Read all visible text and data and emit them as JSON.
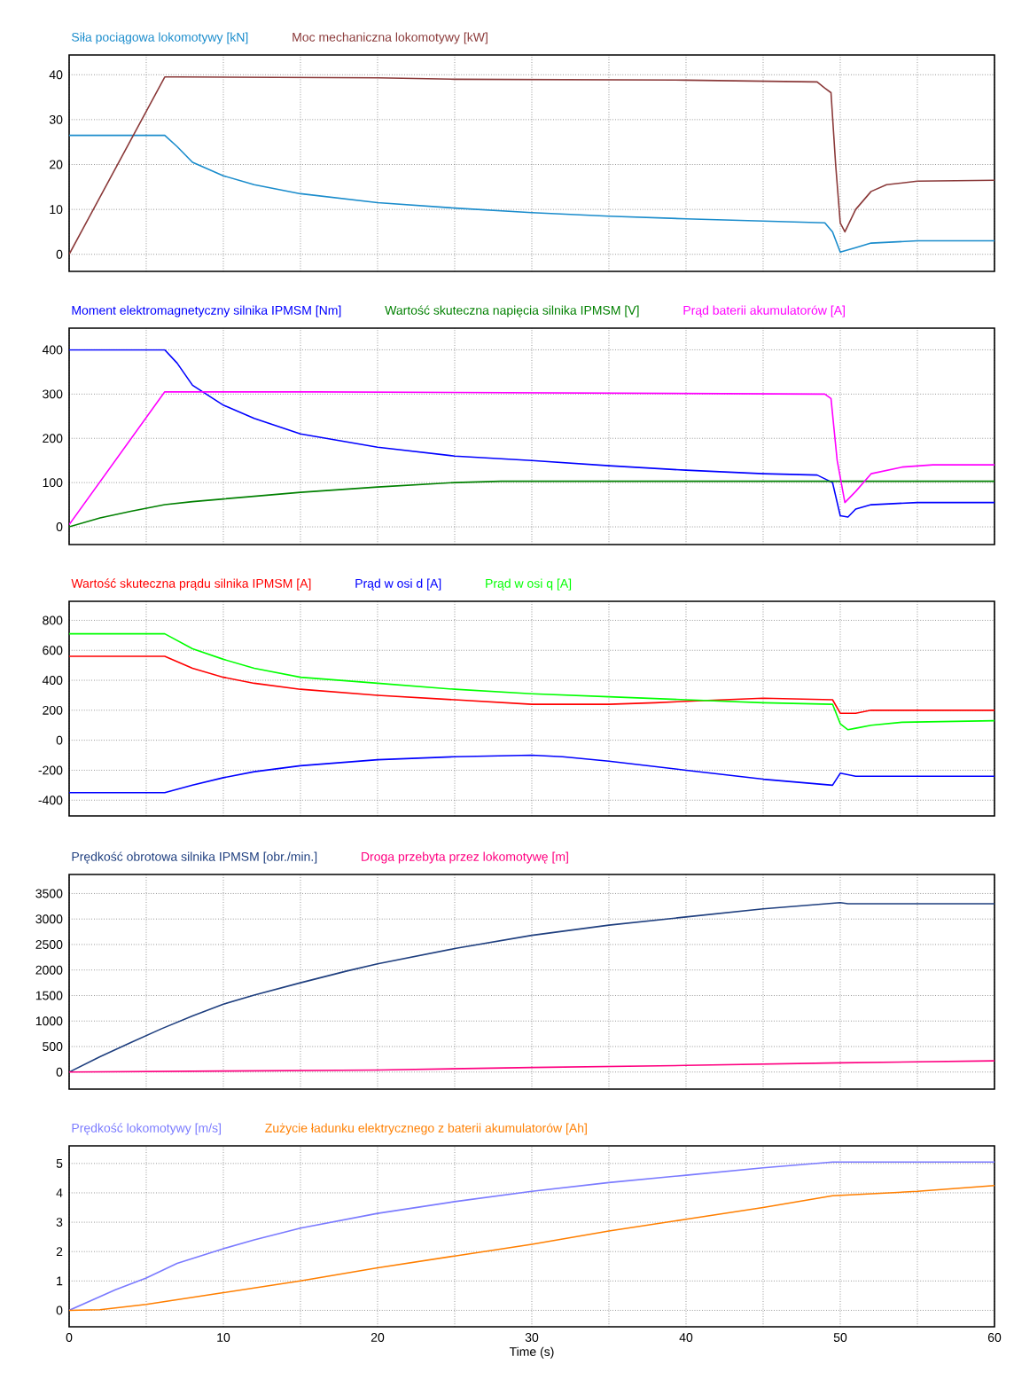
{
  "chart_data": [
    {
      "type": "line",
      "xlim": [
        0,
        60
      ],
      "xticks": [
        0,
        {
          "value": 5,
          "label": null
        },
        10,
        {
          "value": 15,
          "label": null
        },
        20,
        {
          "value": 25,
          "label": null
        },
        30,
        {
          "value": 35,
          "label": null
        },
        40,
        {
          "value": 45,
          "label": null
        },
        50,
        {
          "value": 55,
          "label": null
        },
        60
      ],
      "ylim": [
        -3.8,
        44.4
      ],
      "yticks": [
        0,
        10,
        20,
        30,
        40
      ],
      "tick_labels": "y",
      "grid": true,
      "legend": "top",
      "series": [
        {
          "name": "Siła pociągowa lokomotywy [kN]",
          "color": "#1a8ccc",
          "x": [
            0,
            6.2,
            7,
            8,
            10,
            12,
            15,
            20,
            25,
            30,
            35,
            40,
            45,
            49,
            49.5,
            50,
            51,
            52,
            55,
            60
          ],
          "values": [
            26.5,
            26.5,
            24,
            20.5,
            17.5,
            15.5,
            13.5,
            11.5,
            10.3,
            9.3,
            8.5,
            7.9,
            7.4,
            7,
            5,
            0.5,
            1.5,
            2.5,
            3,
            3
          ]
        },
        {
          "name": "Moc mechaniczna lokomotywy [kW]",
          "color": "#8b3a3a",
          "x": [
            0,
            6.2,
            7,
            20,
            25,
            40,
            48.5,
            49,
            49.4,
            49.7,
            50,
            50.3,
            51,
            52,
            53,
            55,
            60
          ],
          "values": [
            0,
            39.5,
            39.5,
            39.3,
            39,
            38.8,
            38.4,
            37,
            36,
            20,
            7,
            5,
            10,
            14,
            15.5,
            16.3,
            16.5
          ]
        }
      ]
    },
    {
      "type": "line",
      "xlim": [
        0,
        60
      ],
      "xticks": [
        0,
        {
          "value": 5,
          "label": null
        },
        10,
        {
          "value": 15,
          "label": null
        },
        20,
        {
          "value": 25,
          "label": null
        },
        30,
        {
          "value": 35,
          "label": null
        },
        40,
        {
          "value": 45,
          "label": null
        },
        50,
        {
          "value": 55,
          "label": null
        },
        60
      ],
      "ylim": [
        -40,
        449
      ],
      "yticks": [
        0,
        100,
        200,
        300,
        400
      ],
      "tick_labels": "y",
      "grid": true,
      "legend": "top",
      "series": [
        {
          "name": "Moment elektromagnetyczny silnika IPMSM [Nm]",
          "color": "#0000ff",
          "x": [
            0,
            6.2,
            7,
            8,
            10,
            12,
            15,
            20,
            25,
            30,
            35,
            40,
            45,
            48.5,
            49.5,
            50,
            50.5,
            51,
            52,
            55,
            60
          ],
          "values": [
            400,
            400,
            370,
            320,
            275,
            245,
            210,
            180,
            160,
            150,
            138,
            128,
            120,
            117,
            100,
            25,
            22,
            40,
            50,
            55,
            55
          ]
        },
        {
          "name": "Wartość skuteczna napięcia silnika IPMSM [V]",
          "color": "#008000",
          "x": [
            0,
            2,
            4,
            6.2,
            8,
            10,
            15,
            20,
            25,
            28,
            60
          ],
          "values": [
            0,
            20,
            35,
            50,
            57,
            63,
            78,
            90,
            100,
            103,
            103
          ]
        },
        {
          "name": "Prąd baterii akumulatorów [A]",
          "color": "#ff00ff",
          "x": [
            0,
            6.2,
            16,
            49,
            49.4,
            49.8,
            50.3,
            51,
            52,
            54,
            56,
            60
          ],
          "values": [
            5,
            305,
            305,
            300,
            290,
            150,
            55,
            80,
            120,
            135,
            140,
            140
          ]
        }
      ]
    },
    {
      "type": "line",
      "xlim": [
        0,
        60
      ],
      "xticks": [
        0,
        {
          "value": 5,
          "label": null
        },
        10,
        {
          "value": 15,
          "label": null
        },
        20,
        {
          "value": 25,
          "label": null
        },
        30,
        {
          "value": 35,
          "label": null
        },
        40,
        {
          "value": 45,
          "label": null
        },
        50,
        {
          "value": 55,
          "label": null
        },
        60
      ],
      "ylim": [
        -505,
        927
      ],
      "yticks": [
        -400,
        -200,
        0,
        200,
        400,
        600,
        800
      ],
      "tick_labels": "y",
      "grid": true,
      "legend": "top",
      "series": [
        {
          "name": "Wartość skuteczna prądu silnika IPMSM [A]",
          "color": "#ff0000",
          "x": [
            0,
            6.2,
            8,
            10,
            12,
            15,
            20,
            25,
            30,
            35,
            38,
            40,
            45,
            49.5,
            50,
            51,
            52,
            60
          ],
          "values": [
            560,
            560,
            480,
            420,
            380,
            340,
            300,
            270,
            240,
            240,
            250,
            260,
            280,
            270,
            180,
            180,
            200,
            200
          ]
        },
        {
          "name": "Prąd w osi d [A]",
          "color": "#0000ff",
          "x": [
            0,
            6.2,
            8,
            10,
            12,
            15,
            20,
            25,
            30,
            32,
            35,
            40,
            45,
            49.5,
            50,
            51,
            60
          ],
          "values": [
            -350,
            -350,
            -300,
            -250,
            -210,
            -170,
            -130,
            -110,
            -100,
            -110,
            -140,
            -200,
            -260,
            -300,
            -220,
            -240,
            -240
          ]
        },
        {
          "name": "Prąd w osi q [A]",
          "color": "#00ff00",
          "x": [
            0,
            6.2,
            8,
            10,
            12,
            15,
            20,
            25,
            30,
            35,
            40,
            45,
            49.5,
            50,
            50.5,
            51,
            52,
            54,
            60
          ],
          "values": [
            710,
            710,
            610,
            540,
            480,
            420,
            380,
            340,
            310,
            290,
            270,
            250,
            240,
            110,
            70,
            80,
            100,
            120,
            130
          ]
        }
      ]
    },
    {
      "type": "line",
      "xlim": [
        0,
        60
      ],
      "xticks": [
        0,
        {
          "value": 5,
          "label": null
        },
        10,
        {
          "value": 15,
          "label": null
        },
        20,
        {
          "value": 25,
          "label": null
        },
        30,
        {
          "value": 35,
          "label": null
        },
        40,
        {
          "value": 45,
          "label": null
        },
        50,
        {
          "value": 55,
          "label": null
        },
        60
      ],
      "ylim": [
        -334,
        3873
      ],
      "yticks": [
        0,
        500,
        1000,
        1500,
        2000,
        2500,
        3000,
        3500
      ],
      "tick_labels": "y",
      "grid": true,
      "legend": "top",
      "series": [
        {
          "name": "Prędkość obrotowa silnika IPMSM [obr./min.]",
          "color": "#1f3f7f",
          "x": [
            0,
            2,
            4,
            6,
            8,
            10,
            12,
            15,
            18,
            20,
            25,
            30,
            35,
            40,
            45,
            50,
            50.5,
            60
          ],
          "values": [
            0,
            300,
            580,
            850,
            1100,
            1330,
            1510,
            1750,
            1980,
            2120,
            2420,
            2680,
            2880,
            3040,
            3200,
            3320,
            3300,
            3300
          ]
        },
        {
          "name": "Droga przebyta przez lokomotywę [m]",
          "color": "#ff0080",
          "x": [
            0,
            10,
            20,
            30,
            40,
            50,
            60
          ],
          "values": [
            0,
            20,
            40,
            90,
            130,
            180,
            220
          ]
        }
      ]
    },
    {
      "type": "line",
      "xlabel": "Time (s)",
      "xlim": [
        0,
        60
      ],
      "xticks": [
        0,
        {
          "value": 5,
          "label": null
        },
        10,
        {
          "value": 15,
          "label": null
        },
        20,
        {
          "value": 25,
          "label": null
        },
        30,
        {
          "value": 35,
          "label": null
        },
        40,
        {
          "value": 45,
          "label": null
        },
        50,
        {
          "value": 55,
          "label": null
        },
        60
      ],
      "ylim": [
        -0.56,
        5.6
      ],
      "yticks": [
        0,
        1,
        2,
        3,
        4,
        5
      ],
      "grid": true,
      "legend": "top",
      "series": [
        {
          "name": "Prędkość lokomotywy [m/s]",
          "color": "#7b7bff",
          "x": [
            0,
            3,
            5,
            7,
            10,
            12,
            15,
            20,
            25,
            30,
            35,
            40,
            45,
            49.5,
            60
          ],
          "values": [
            0,
            0.7,
            1.1,
            1.6,
            2.1,
            2.4,
            2.8,
            3.3,
            3.7,
            4.05,
            4.35,
            4.6,
            4.85,
            5.05,
            5.05
          ]
        },
        {
          "name": "Zużycie ładunku elektrycznego z baterii akumulatorów [Ah]",
          "color": "#ff7f00",
          "x": [
            0,
            2,
            5,
            10,
            15,
            20,
            25,
            30,
            35,
            40,
            45,
            49.5,
            55,
            60
          ],
          "values": [
            0,
            0.02,
            0.2,
            0.6,
            1.0,
            1.45,
            1.85,
            2.25,
            2.7,
            3.1,
            3.5,
            3.9,
            4.05,
            4.25
          ]
        }
      ]
    }
  ]
}
